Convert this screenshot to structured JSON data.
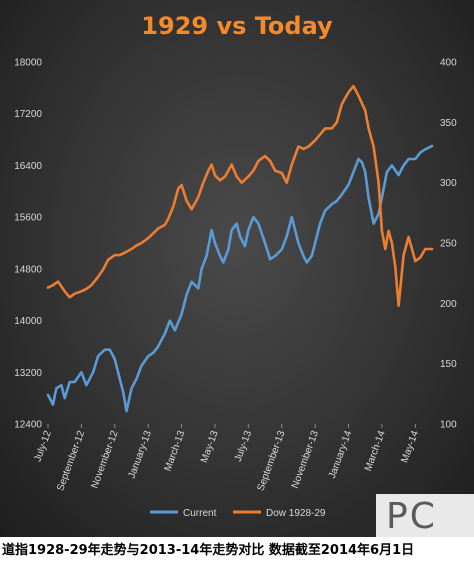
{
  "caption": "道指1928-29年走势与2013-14年走势对比  数据截至2014年6月1日",
  "watermark": {
    "text": "PC"
  },
  "chart_data": {
    "type": "line",
    "title": "1929 vs Today",
    "y_left": {
      "range": [
        12400,
        18000
      ],
      "ticks": [
        "12400",
        "13200",
        "14000",
        "14800",
        "15600",
        "16400",
        "17200",
        "18000"
      ]
    },
    "y_right": {
      "range": [
        100,
        400
      ],
      "ticks": [
        "100",
        "150",
        "200",
        "250",
        "300",
        "350",
        "400"
      ]
    },
    "x_range": [
      0,
      23
    ],
    "x_ticks": [
      "July-12",
      "September-12",
      "November-12",
      "January-13",
      "March-13",
      "May-13",
      "July-13",
      "September-13",
      "November-13",
      "January-14",
      "March-14",
      "May-14"
    ],
    "x_tick_positions": [
      0,
      2,
      4,
      6,
      8,
      10,
      12,
      14,
      16,
      18,
      20,
      22
    ],
    "grid": false,
    "legend": "bottom-center",
    "series": [
      {
        "name": "Current",
        "axis": "left",
        "color": "#5b9bd5",
        "points": [
          [
            0.0,
            12850
          ],
          [
            0.3,
            12700
          ],
          [
            0.5,
            12950
          ],
          [
            0.8,
            13000
          ],
          [
            1.0,
            12800
          ],
          [
            1.3,
            13050
          ],
          [
            1.6,
            13050
          ],
          [
            2.0,
            13200
          ],
          [
            2.3,
            13000
          ],
          [
            2.7,
            13200
          ],
          [
            3.0,
            13450
          ],
          [
            3.4,
            13550
          ],
          [
            3.7,
            13550
          ],
          [
            4.0,
            13400
          ],
          [
            4.2,
            13200
          ],
          [
            4.5,
            12900
          ],
          [
            4.7,
            12600
          ],
          [
            5.0,
            12950
          ],
          [
            5.3,
            13100
          ],
          [
            5.6,
            13300
          ],
          [
            6.0,
            13450
          ],
          [
            6.3,
            13500
          ],
          [
            6.6,
            13600
          ],
          [
            7.0,
            13800
          ],
          [
            7.3,
            14000
          ],
          [
            7.6,
            13850
          ],
          [
            8.0,
            14100
          ],
          [
            8.3,
            14400
          ],
          [
            8.6,
            14600
          ],
          [
            9.0,
            14500
          ],
          [
            9.2,
            14800
          ],
          [
            9.5,
            15000
          ],
          [
            9.8,
            15400
          ],
          [
            10.0,
            15200
          ],
          [
            10.3,
            15000
          ],
          [
            10.5,
            14900
          ],
          [
            10.8,
            15100
          ],
          [
            11.0,
            15400
          ],
          [
            11.3,
            15500
          ],
          [
            11.5,
            15300
          ],
          [
            11.8,
            15150
          ],
          [
            12.0,
            15400
          ],
          [
            12.3,
            15600
          ],
          [
            12.6,
            15500
          ],
          [
            13.0,
            15200
          ],
          [
            13.3,
            14950
          ],
          [
            13.6,
            15000
          ],
          [
            14.0,
            15100
          ],
          [
            14.3,
            15300
          ],
          [
            14.6,
            15600
          ],
          [
            15.0,
            15200
          ],
          [
            15.3,
            15000
          ],
          [
            15.5,
            14900
          ],
          [
            15.8,
            15000
          ],
          [
            16.0,
            15200
          ],
          [
            16.3,
            15500
          ],
          [
            16.6,
            15700
          ],
          [
            17.0,
            15800
          ],
          [
            17.3,
            15850
          ],
          [
            17.6,
            15950
          ],
          [
            18.0,
            16100
          ],
          [
            18.3,
            16300
          ],
          [
            18.6,
            16500
          ],
          [
            18.8,
            16450
          ],
          [
            19.0,
            16300
          ],
          [
            19.2,
            15900
          ],
          [
            19.5,
            15500
          ],
          [
            19.8,
            15650
          ],
          [
            20.0,
            15900
          ],
          [
            20.3,
            16300
          ],
          [
            20.6,
            16400
          ],
          [
            21.0,
            16250
          ],
          [
            21.3,
            16400
          ],
          [
            21.6,
            16500
          ],
          [
            22.0,
            16500
          ],
          [
            22.3,
            16600
          ],
          [
            22.6,
            16650
          ],
          [
            23.0,
            16700
          ]
        ]
      },
      {
        "name": "Dow 1928-29",
        "axis": "right",
        "color": "#ed7d31",
        "points": [
          [
            0.0,
            213
          ],
          [
            0.3,
            215
          ],
          [
            0.6,
            218
          ],
          [
            1.0,
            210
          ],
          [
            1.3,
            205
          ],
          [
            1.6,
            208
          ],
          [
            2.0,
            210
          ],
          [
            2.3,
            212
          ],
          [
            2.6,
            215
          ],
          [
            3.0,
            222
          ],
          [
            3.3,
            228
          ],
          [
            3.6,
            236
          ],
          [
            4.0,
            240
          ],
          [
            4.3,
            240
          ],
          [
            4.6,
            242
          ],
          [
            5.0,
            245
          ],
          [
            5.3,
            248
          ],
          [
            5.6,
            250
          ],
          [
            6.0,
            254
          ],
          [
            6.3,
            258
          ],
          [
            6.6,
            262
          ],
          [
            7.0,
            265
          ],
          [
            7.2,
            270
          ],
          [
            7.5,
            280
          ],
          [
            7.8,
            295
          ],
          [
            8.0,
            298
          ],
          [
            8.3,
            285
          ],
          [
            8.6,
            278
          ],
          [
            9.0,
            288
          ],
          [
            9.3,
            300
          ],
          [
            9.6,
            310
          ],
          [
            9.8,
            315
          ],
          [
            10.0,
            306
          ],
          [
            10.3,
            302
          ],
          [
            10.6,
            305
          ],
          [
            11.0,
            315
          ],
          [
            11.3,
            305
          ],
          [
            11.6,
            300
          ],
          [
            12.0,
            305
          ],
          [
            12.3,
            310
          ],
          [
            12.6,
            318
          ],
          [
            13.0,
            322
          ],
          [
            13.3,
            318
          ],
          [
            13.6,
            310
          ],
          [
            14.0,
            308
          ],
          [
            14.3,
            300
          ],
          [
            14.6,
            315
          ],
          [
            15.0,
            330
          ],
          [
            15.3,
            328
          ],
          [
            15.6,
            330
          ],
          [
            16.0,
            335
          ],
          [
            16.3,
            340
          ],
          [
            16.6,
            345
          ],
          [
            17.0,
            345
          ],
          [
            17.3,
            350
          ],
          [
            17.6,
            365
          ],
          [
            18.0,
            375
          ],
          [
            18.3,
            380
          ],
          [
            18.6,
            372
          ],
          [
            19.0,
            360
          ],
          [
            19.2,
            345
          ],
          [
            19.5,
            330
          ],
          [
            19.8,
            300
          ],
          [
            20.0,
            260
          ],
          [
            20.2,
            245
          ],
          [
            20.4,
            260
          ],
          [
            20.6,
            250
          ],
          [
            20.8,
            230
          ],
          [
            21.0,
            198
          ],
          [
            21.3,
            240
          ],
          [
            21.6,
            255
          ],
          [
            22.0,
            235
          ],
          [
            22.3,
            238
          ],
          [
            22.6,
            245
          ],
          [
            23.0,
            245
          ]
        ]
      }
    ]
  }
}
